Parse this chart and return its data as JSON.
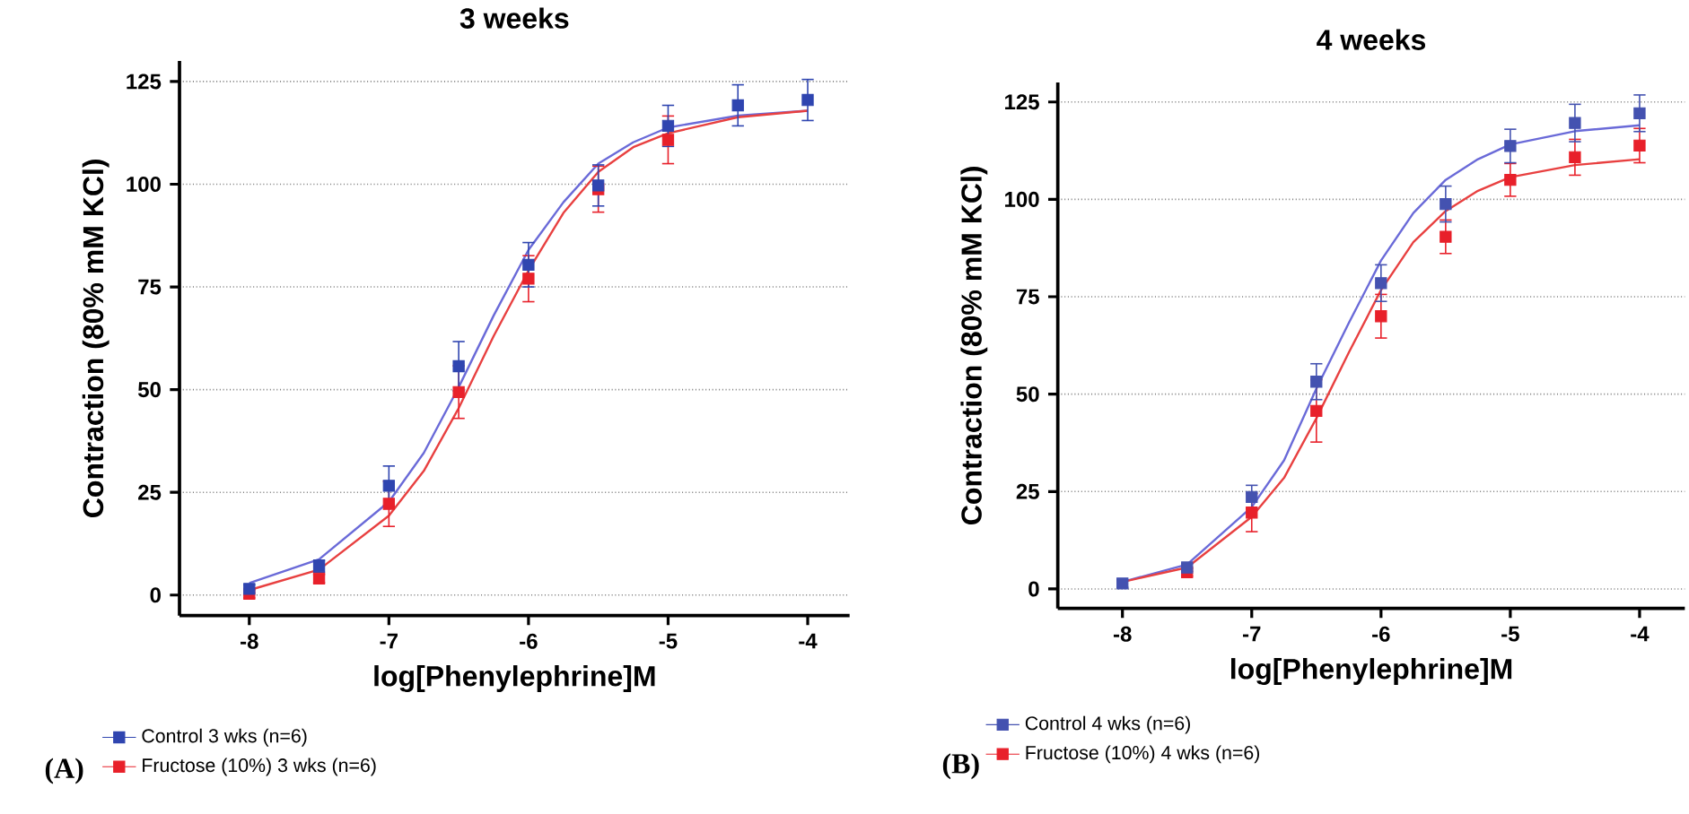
{
  "chart_data": [
    {
      "type": "scatter",
      "title": "3 weeks",
      "xlabel": "log[Phenylephrine]M",
      "ylabel": "Contraction (80% mM KCl)",
      "xlim": [
        -8.5,
        -3.7
      ],
      "ylim": [
        -5,
        130
      ],
      "xticks": [
        -8,
        -7,
        -6,
        -5,
        -4
      ],
      "yticks": [
        0,
        25,
        50,
        75,
        100,
        125
      ],
      "grid": "y",
      "legend": "bottom",
      "marker": "square",
      "annotations": [
        "(A)"
      ],
      "x": [
        -8,
        -7.5,
        -7,
        -6.5,
        -6,
        -5.5,
        -5,
        -4.5,
        -4
      ],
      "series": [
        {
          "name": "Control 3 wks (n=6)",
          "color": "#2f45b0",
          "values": [
            1.5,
            7,
            26.6,
            55.7,
            80.4,
            99.7,
            114.2,
            119.2,
            120.5
          ],
          "errors": [
            1,
            1.5,
            4.8,
            6,
            5.4,
            5,
            5,
            5,
            5
          ]
        },
        {
          "name": "Fructose (10%) 3 wks (n=6)",
          "color": "#e8202a",
          "values": [
            0.3,
            4,
            22.2,
            49.4,
            77,
            98.8,
            110.8,
            null,
            null
          ],
          "errors": [
            1,
            1,
            5.5,
            6.4,
            5.6,
            5.6,
            5.8,
            null,
            null
          ]
        },
        {
          "type": "line",
          "marker": "none",
          "color": "#6a6ad8",
          "x": [
            -8,
            -7.5,
            -7,
            -6.75,
            -6.5,
            -6.25,
            -6,
            -5.75,
            -5.5,
            -5.25,
            -5,
            -4.5,
            -4
          ],
          "values": [
            2.9,
            8.7,
            22.7,
            34.6,
            50.6,
            68,
            84,
            95.6,
            105,
            110.2,
            113.8,
            116.7,
            117.9
          ]
        },
        {
          "type": "line",
          "marker": "none",
          "color": "#e84040",
          "x": [
            -8,
            -7.5,
            -7,
            -6.75,
            -6.5,
            -6.25,
            -6,
            -5.75,
            -5.5,
            -5.25,
            -5,
            -4.5,
            -4
          ],
          "values": [
            1.2,
            6.2,
            19.3,
            30.2,
            45.5,
            63,
            79,
            93,
            103,
            109,
            112.4,
            116.3,
            117.9
          ]
        }
      ]
    },
    {
      "type": "scatter",
      "title": "4 weeks",
      "xlabel": "log[Phenylephrine]M",
      "ylabel": "Contraction (80% mM KCl)",
      "xlim": [
        -8.5,
        -3.65
      ],
      "ylim": [
        -5,
        130
      ],
      "xticks": [
        -8,
        -7,
        -6,
        -5,
        -4
      ],
      "yticks": [
        0,
        25,
        50,
        75,
        100,
        125
      ],
      "grid": "y",
      "legend": "bottom",
      "marker": "square",
      "annotations": [
        "(B)"
      ],
      "x": [
        -8,
        -7.5,
        -7,
        -6.5,
        -6,
        -5.5,
        -5,
        -4.5,
        -4
      ],
      "series": [
        {
          "name": "Control 4 wks (n=6)",
          "color": "#4452b0",
          "values": [
            1.4,
            5.5,
            23.6,
            53.2,
            78.5,
            98.8,
            113.7,
            119.6,
            122.1
          ],
          "errors": [
            1,
            1,
            3,
            4.6,
            4.7,
            4.6,
            4.3,
            4.8,
            4.7
          ]
        },
        {
          "name": "Fructose (10%) 4 wks (n=6)",
          "color": "#e8202a",
          "values": [
            null,
            4.3,
            19.6,
            45.7,
            70,
            90.4,
            105,
            110.8,
            113.8
          ],
          "errors": [
            null,
            1,
            4.9,
            8,
            5.6,
            4.3,
            4.2,
            4.6,
            4.4
          ]
        },
        {
          "type": "line",
          "marker": "none",
          "color": "#6a6ad8",
          "x": [
            -8,
            -7.5,
            -7,
            -6.75,
            -6.5,
            -6.25,
            -6,
            -5.75,
            -5.5,
            -5.25,
            -5,
            -4.5,
            -4
          ],
          "values": [
            1.8,
            6.3,
            21,
            33,
            51.4,
            68.2,
            84.3,
            96.5,
            105,
            110.3,
            114.1,
            117.5,
            119
          ]
        },
        {
          "type": "line",
          "marker": "none",
          "color": "#e84040",
          "x": [
            -8,
            -7.5,
            -7,
            -6.75,
            -6.5,
            -6.25,
            -6,
            -5.75,
            -5.5,
            -5.25,
            -5,
            -4.5,
            -4
          ],
          "values": [
            1.8,
            5.5,
            18.5,
            28.5,
            43.8,
            60.6,
            76.7,
            89,
            97,
            102.2,
            105.7,
            108.8,
            110.3
          ]
        }
      ]
    }
  ]
}
